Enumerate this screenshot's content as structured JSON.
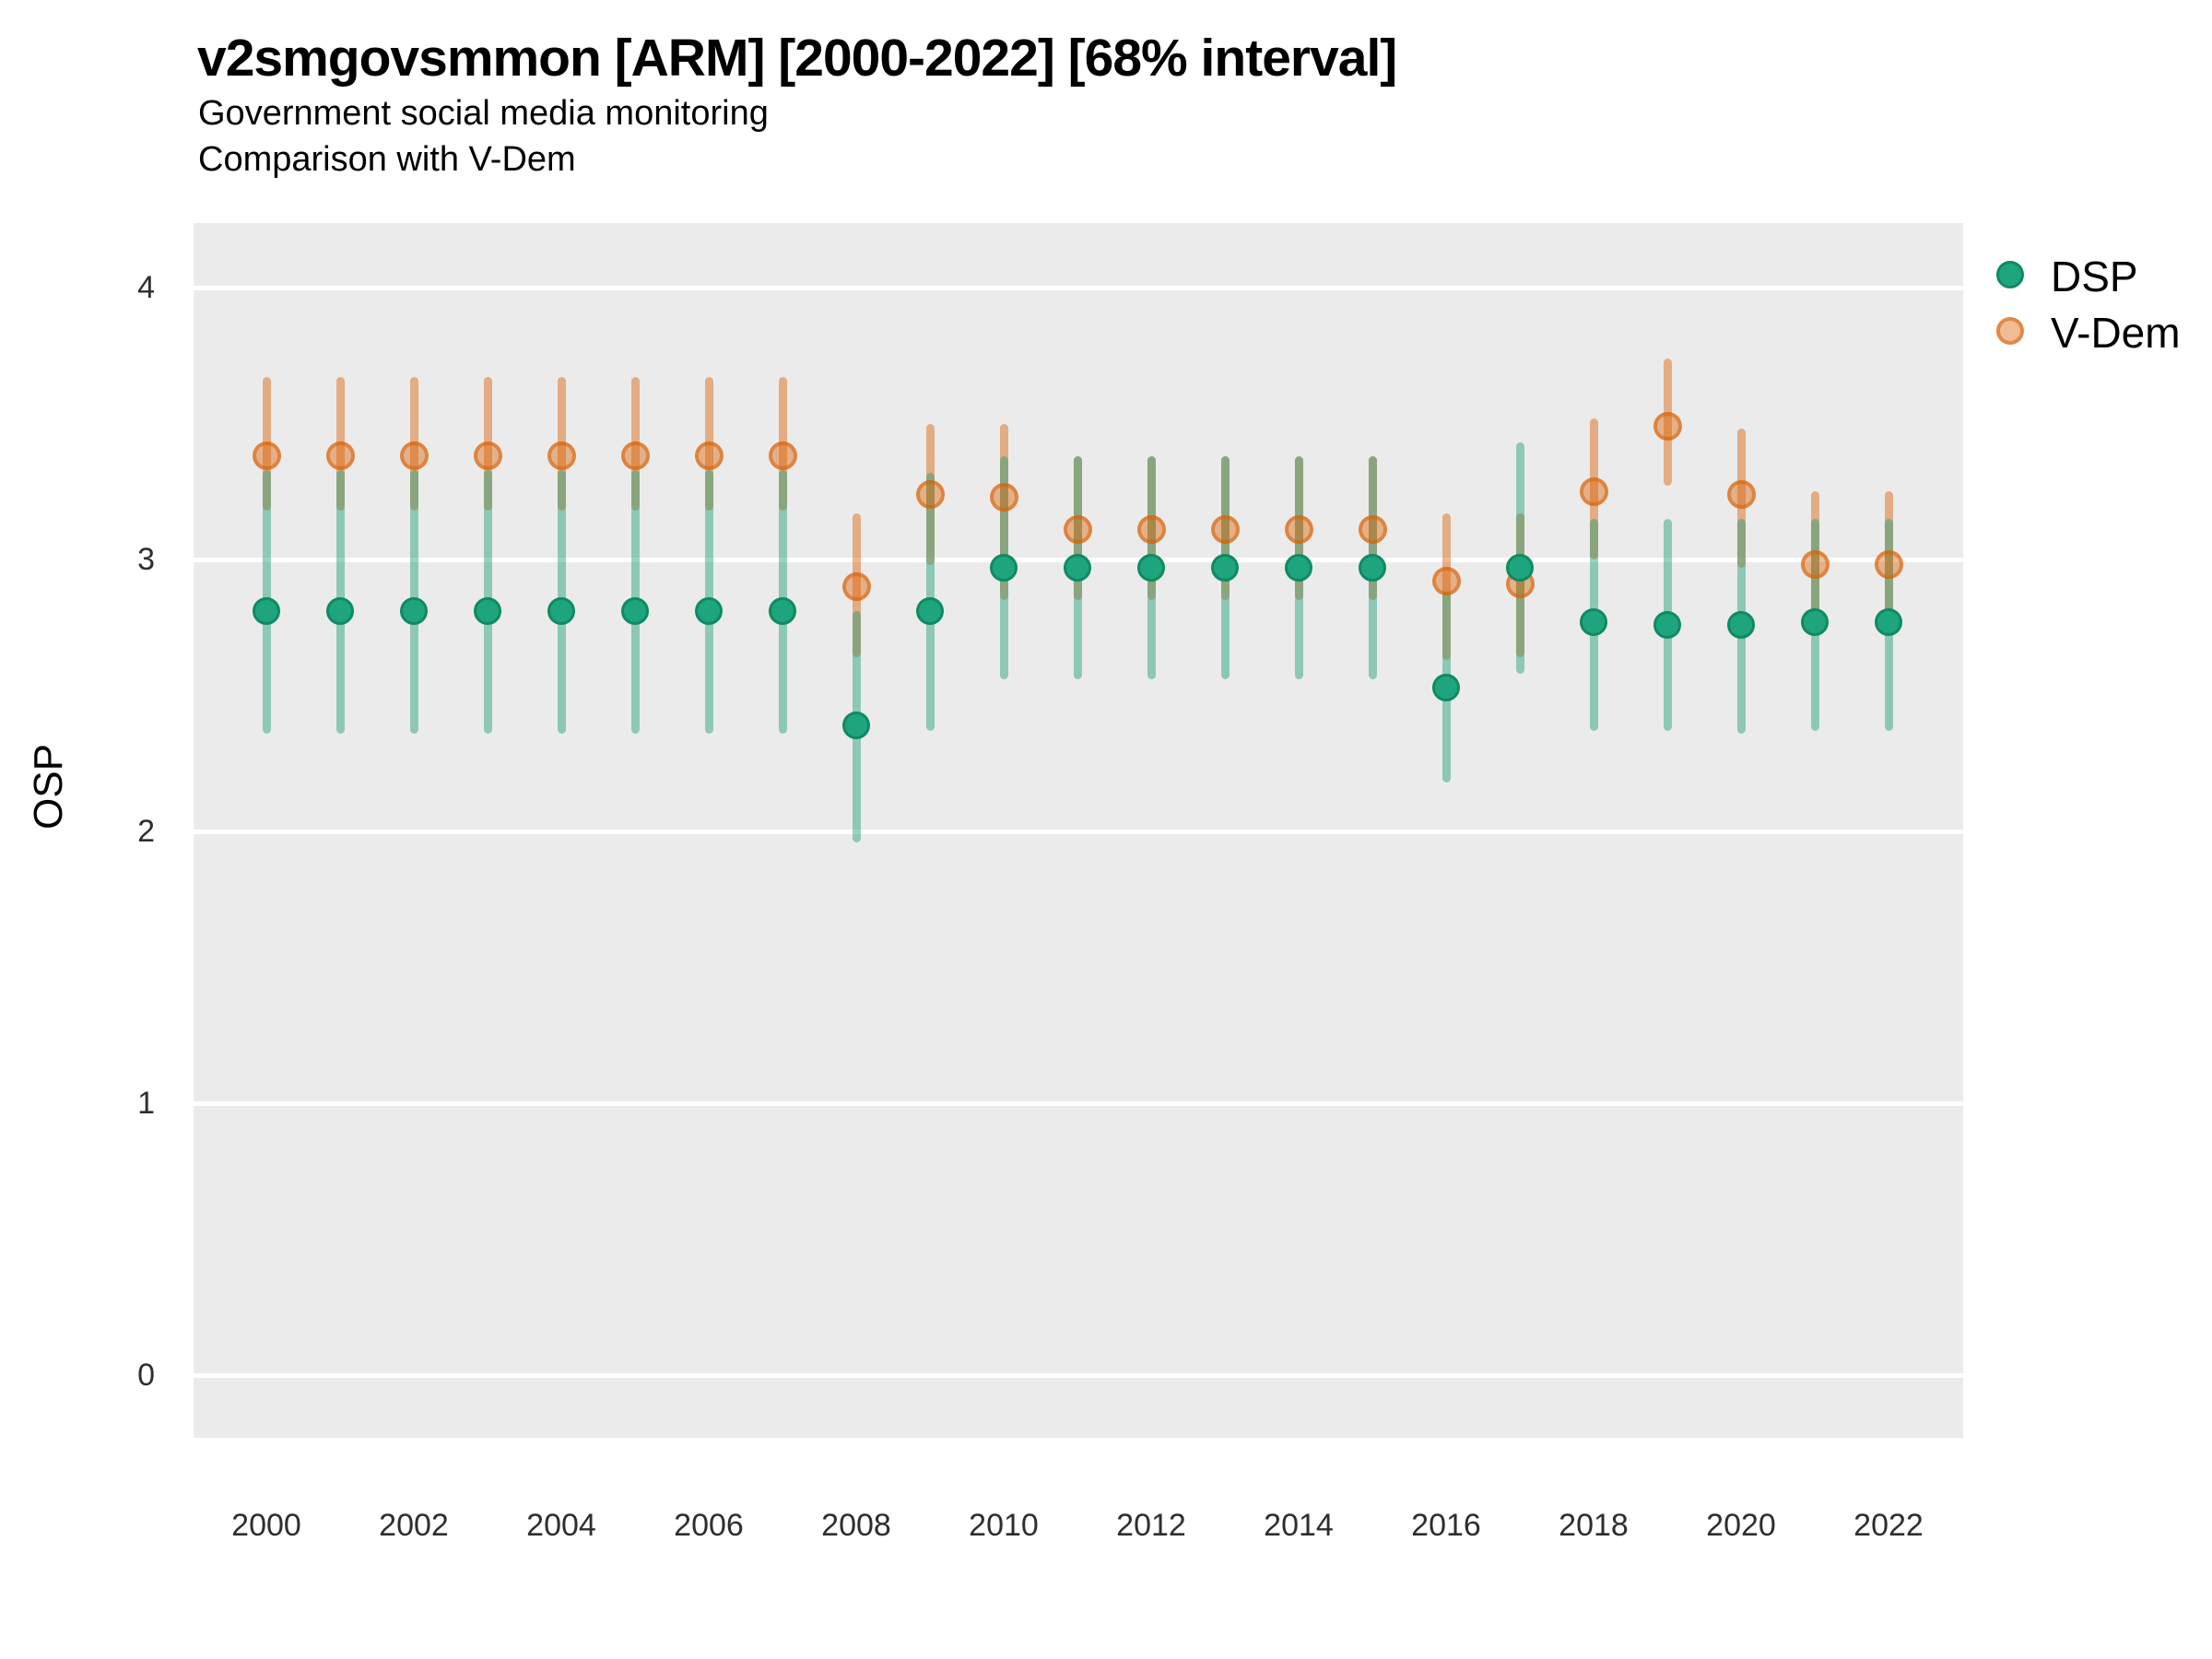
{
  "title": "v2smgovsmmon [ARM] [2000-2022] [68% interval]",
  "subtitle1": "Government social media monitoring",
  "subtitle2": "Comparison with V-Dem",
  "y_axis": {
    "label": "OSP",
    "ticks": [
      "0",
      "1",
      "2",
      "3",
      "4"
    ]
  },
  "x_axis": {
    "tick_labels": [
      "2000",
      "2002",
      "2004",
      "2006",
      "2008",
      "2010",
      "2012",
      "2014",
      "2016",
      "2018",
      "2020",
      "2022"
    ]
  },
  "legend": {
    "items": [
      {
        "label": "DSP",
        "color": "#1B9E77",
        "style": "solid"
      },
      {
        "label": "V-Dem",
        "color": "#D95F02",
        "style": "ring"
      }
    ]
  },
  "colors": {
    "panel_background": "#EBEBEB",
    "gridline": "#FFFFFF",
    "dsp_green": "#1B9E77",
    "dsp_marker_fill": "#1EA57D",
    "dsp_marker_stroke": "#0F8A63",
    "vdem_orange": "#D95F02",
    "whisker_alpha": 0.45,
    "text": "#000000",
    "tick_text": "#2E2E2E"
  },
  "chart_data": {
    "type": "scatter",
    "mark": "pointrange",
    "interval": "68%",
    "title": "v2smgovsmmon [ARM] [2000-2022] [68% interval]",
    "subtitle": "Government social media monitoring — Comparison with V-Dem",
    "xlabel": "",
    "ylabel": "OSP",
    "ylim": [
      -0.2,
      4.25
    ],
    "grid": "white major gridlines on gray panel",
    "legend_position": "right-top",
    "x": [
      2000,
      2001,
      2002,
      2003,
      2004,
      2005,
      2006,
      2007,
      2008,
      2009,
      2010,
      2011,
      2012,
      2013,
      2014,
      2015,
      2016,
      2017,
      2018,
      2019,
      2020,
      2021,
      2022
    ],
    "series": [
      {
        "name": "DSP",
        "color": "#1B9E77",
        "values": [
          2.81,
          2.81,
          2.81,
          2.81,
          2.81,
          2.81,
          2.81,
          2.81,
          2.39,
          2.81,
          2.97,
          2.97,
          2.97,
          2.97,
          2.97,
          2.97,
          2.53,
          2.97,
          2.77,
          2.76,
          2.76,
          2.77,
          2.77
        ],
        "lower": [
          2.36,
          2.36,
          2.36,
          2.36,
          2.36,
          2.36,
          2.36,
          2.36,
          1.96,
          2.37,
          2.56,
          2.56,
          2.56,
          2.56,
          2.56,
          2.56,
          2.18,
          2.58,
          2.37,
          2.37,
          2.36,
          2.37,
          2.37
        ],
        "upper": [
          3.33,
          3.33,
          3.33,
          3.33,
          3.33,
          3.33,
          3.33,
          3.33,
          2.81,
          3.32,
          3.38,
          3.38,
          3.38,
          3.38,
          3.38,
          3.38,
          2.88,
          3.43,
          3.15,
          3.15,
          3.15,
          3.15,
          3.15
        ]
      },
      {
        "name": "V-Dem",
        "color": "#D95F02",
        "values": [
          3.38,
          3.38,
          3.38,
          3.38,
          3.38,
          3.38,
          3.38,
          3.38,
          2.9,
          3.24,
          3.23,
          3.11,
          3.11,
          3.11,
          3.11,
          3.11,
          2.92,
          2.91,
          3.25,
          3.49,
          3.24,
          2.98,
          2.98
        ],
        "lower": [
          3.18,
          3.18,
          3.18,
          3.18,
          3.18,
          3.18,
          3.18,
          3.18,
          2.64,
          2.98,
          2.85,
          2.85,
          2.85,
          2.85,
          2.85,
          2.85,
          2.63,
          2.64,
          3.0,
          3.27,
          2.97,
          2.8,
          2.8
        ],
        "upper": [
          3.67,
          3.67,
          3.67,
          3.67,
          3.67,
          3.67,
          3.67,
          3.67,
          3.17,
          3.5,
          3.5,
          3.38,
          3.38,
          3.38,
          3.38,
          3.38,
          3.17,
          3.17,
          3.52,
          3.74,
          3.48,
          3.25,
          3.25
        ]
      }
    ]
  }
}
